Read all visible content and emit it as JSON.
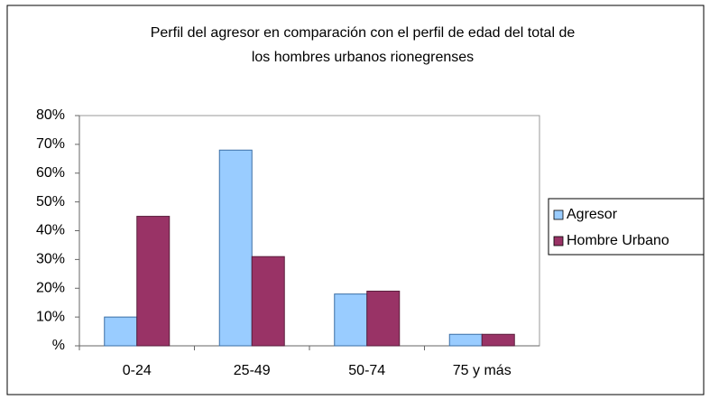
{
  "chart_data": {
    "type": "bar",
    "title": [
      "Perfil del agresor en comparación con el perfil de edad del total de",
      "los hombres urbanos rionegrenses"
    ],
    "categories": [
      "0-24",
      "25-49",
      "50-74",
      "75 y más"
    ],
    "series": [
      {
        "name": "Agresor",
        "color": "#99ccff",
        "values": [
          10,
          68,
          18,
          4
        ]
      },
      {
        "name": "Hombre Urbano",
        "color": "#993366",
        "values": [
          45,
          31,
          19,
          4
        ]
      }
    ],
    "ylim": [
      0,
      80
    ],
    "yticks": [
      {
        "value": 0,
        "label": "%"
      },
      {
        "value": 10,
        "label": "10%"
      },
      {
        "value": 20,
        "label": "20%"
      },
      {
        "value": 30,
        "label": "30%"
      },
      {
        "value": 40,
        "label": "40%"
      },
      {
        "value": 50,
        "label": "50%"
      },
      {
        "value": 60,
        "label": "60%"
      },
      {
        "value": 70,
        "label": "70%"
      },
      {
        "value": 80,
        "label": "80%"
      }
    ],
    "grid": false,
    "legend": "right"
  }
}
